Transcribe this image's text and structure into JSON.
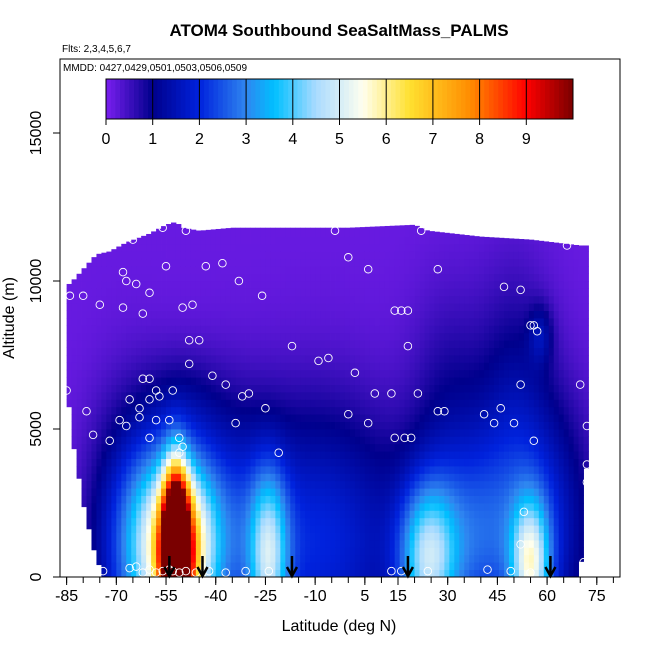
{
  "chart_data": {
    "type": "heatmap",
    "title": "ATOM4 Southbound SeaSaltMass_PALMS",
    "subtitle_flights": "Flts: 2,3,4,5,6,7",
    "subtitle_dates": "MMDD: 0427,0429,0501,0503,0506,0509",
    "xlabel": "Latitude (deg N)",
    "ylabel": "Altitude (m)",
    "xlim": [
      -87,
      82
    ],
    "ylim": [
      0,
      17500
    ],
    "x_ticks": [
      -85,
      -70,
      -55,
      -40,
      -25,
      -10,
      5,
      15,
      30,
      45,
      60,
      75
    ],
    "x_tick_labels": [
      "-85",
      "-70",
      "-55",
      "-40",
      "-25",
      "-10",
      "5",
      "15",
      "30",
      "45",
      "60",
      "75"
    ],
    "y_ticks": [
      0,
      5000,
      10000,
      15000
    ],
    "y_tick_labels": [
      "0",
      "5000",
      "10000",
      "15000"
    ],
    "colorbar": {
      "range": [
        0,
        10
      ],
      "tick_values": [
        0,
        1,
        2,
        3,
        4,
        5,
        6,
        7,
        8,
        9
      ],
      "tick_labels": [
        "0",
        "1",
        "2",
        "3",
        "4",
        "5",
        "6",
        "7",
        "8",
        "9"
      ],
      "colors": [
        "#7a1ff0",
        "#00008c",
        "#0022dd",
        "#2f86f0",
        "#00bfff",
        "#aadbff",
        "#ffffee",
        "#ffe030",
        "#ff8c00",
        "#ff0000",
        "#7a0000"
      ],
      "color_stops": [
        0,
        1,
        2,
        3,
        3.6,
        4.5,
        5.5,
        6.5,
        7.8,
        9,
        10
      ]
    },
    "field": {
      "background_value": 0.15,
      "top_boundary": {
        "x": [
          -84,
          -76,
          -72,
          -67,
          -60,
          -55,
          -52,
          -50,
          -45,
          -35,
          0,
          20,
          24,
          40,
          55,
          70
        ],
        "y": [
          9900,
          10900,
          11000,
          11300,
          11600,
          11900,
          12000,
          11800,
          11700,
          11800,
          11800,
          11900,
          11700,
          11500,
          11400,
          11200
        ]
      },
      "left_edge_lat": -85,
      "right_edge_lat": 72,
      "bottom_left_boundary": {
        "x": [
          -85,
          -83,
          -80,
          -77,
          -74
        ],
        "y": [
          6500,
          4500,
          2500,
          1000,
          0
        ]
      },
      "bottom_right_boundary": {
        "x": [
          70,
          72
        ],
        "y": [
          0,
          4200
        ]
      },
      "hotspots": [
        {
          "lat": -52,
          "alt": 400,
          "sx": 3,
          "sy": 1600,
          "value": 8.8
        },
        {
          "lat": -52,
          "alt": 1800,
          "sx": 2.5,
          "sy": 1500,
          "value": 5.0
        },
        {
          "lat": -56,
          "alt": 1000,
          "sx": 7,
          "sy": 2200,
          "value": 3.2
        },
        {
          "lat": -48,
          "alt": 900,
          "sx": 6,
          "sy": 2000,
          "value": 3.3
        },
        {
          "lat": -65,
          "alt": 1200,
          "sx": 9,
          "sy": 3000,
          "value": 2.0
        },
        {
          "lat": -40,
          "alt": 1500,
          "sx": 12,
          "sy": 2800,
          "value": 1.9
        },
        {
          "lat": -24,
          "alt": 700,
          "sx": 4,
          "sy": 2000,
          "value": 3.0
        },
        {
          "lat": -8,
          "alt": 1200,
          "sx": 18,
          "sy": 3200,
          "value": 1.8
        },
        {
          "lat": 24,
          "alt": 600,
          "sx": 6,
          "sy": 1800,
          "value": 3.3
        },
        {
          "lat": 38,
          "alt": 1300,
          "sx": 12,
          "sy": 2600,
          "value": 2.2
        },
        {
          "lat": 55,
          "alt": 400,
          "sx": 4,
          "sy": 1500,
          "value": 3.6
        },
        {
          "lat": 60,
          "alt": 1800,
          "sx": 10,
          "sy": 3000,
          "value": 1.4
        },
        {
          "lat": 58,
          "alt": 8200,
          "sx": 2.5,
          "sy": 700,
          "value": 0.9
        },
        {
          "lat": 50,
          "alt": 6200,
          "sx": 8,
          "sy": 3000,
          "value": 0.8
        },
        {
          "lat": 30,
          "alt": 6500,
          "sx": 8,
          "sy": 2500,
          "value": 0.5
        },
        {
          "lat": -50,
          "alt": 6000,
          "sx": 8,
          "sy": 1200,
          "value": 0.4
        }
      ]
    },
    "sample_points": [
      {
        "lat": -85,
        "alt": 6300
      },
      {
        "lat": -84,
        "alt": 9500
      },
      {
        "lat": -80,
        "alt": 9500
      },
      {
        "lat": -75,
        "alt": 9200
      },
      {
        "lat": -79,
        "alt": 5600
      },
      {
        "lat": -77,
        "alt": 4800
      },
      {
        "lat": -72,
        "alt": 4600
      },
      {
        "lat": -69,
        "alt": 5300
      },
      {
        "lat": -67,
        "alt": 5100
      },
      {
        "lat": -66,
        "alt": 6000
      },
      {
        "lat": -68,
        "alt": 10300
      },
      {
        "lat": -67,
        "alt": 10000
      },
      {
        "lat": -64,
        "alt": 9900
      },
      {
        "lat": -68,
        "alt": 9100
      },
      {
        "lat": -65,
        "alt": 11400
      },
      {
        "lat": -62,
        "alt": 8900
      },
      {
        "lat": -60,
        "alt": 9600
      },
      {
        "lat": -56,
        "alt": 11800
      },
      {
        "lat": -55,
        "alt": 10500
      },
      {
        "lat": -50,
        "alt": 9100
      },
      {
        "lat": -47,
        "alt": 9200
      },
      {
        "lat": -49,
        "alt": 11700
      },
      {
        "lat": -48,
        "alt": 8000
      },
      {
        "lat": -43,
        "alt": 10500
      },
      {
        "lat": -38,
        "alt": 10600
      },
      {
        "lat": -33,
        "alt": 10000
      },
      {
        "lat": -26,
        "alt": 9500
      },
      {
        "lat": -62,
        "alt": 6700
      },
      {
        "lat": -60,
        "alt": 6700
      },
      {
        "lat": -60,
        "alt": 6000
      },
      {
        "lat": -58,
        "alt": 6300
      },
      {
        "lat": -57,
        "alt": 6100
      },
      {
        "lat": -58,
        "alt": 5300
      },
      {
        "lat": -63,
        "alt": 5700
      },
      {
        "lat": -63,
        "alt": 5400
      },
      {
        "lat": -60,
        "alt": 4700
      },
      {
        "lat": -54,
        "alt": 5300
      },
      {
        "lat": -53,
        "alt": 6300
      },
      {
        "lat": -48,
        "alt": 7200
      },
      {
        "lat": -45,
        "alt": 8000
      },
      {
        "lat": -41,
        "alt": 6800
      },
      {
        "lat": -37,
        "alt": 6500
      },
      {
        "lat": -32,
        "alt": 6100
      },
      {
        "lat": -30,
        "alt": 6200
      },
      {
        "lat": -25,
        "alt": 5700
      },
      {
        "lat": -34,
        "alt": 5200
      },
      {
        "lat": -51,
        "alt": 4700
      },
      {
        "lat": -50,
        "alt": 4400
      },
      {
        "lat": -51,
        "alt": 4200
      },
      {
        "lat": -21,
        "alt": 4200
      },
      {
        "lat": -17,
        "alt": 7800
      },
      {
        "lat": -9,
        "alt": 7300
      },
      {
        "lat": -6,
        "alt": 7400
      },
      {
        "lat": -4,
        "alt": 11700
      },
      {
        "lat": 0,
        "alt": 10800
      },
      {
        "lat": 6,
        "alt": 10400
      },
      {
        "lat": 14,
        "alt": 9000
      },
      {
        "lat": 16,
        "alt": 9000
      },
      {
        "lat": 18,
        "alt": 9000
      },
      {
        "lat": 18,
        "alt": 7800
      },
      {
        "lat": 22,
        "alt": 11700
      },
      {
        "lat": 27,
        "alt": 10400
      },
      {
        "lat": 2,
        "alt": 6900
      },
      {
        "lat": 8,
        "alt": 6200
      },
      {
        "lat": 13,
        "alt": 6200
      },
      {
        "lat": 0,
        "alt": 5500
      },
      {
        "lat": 6,
        "alt": 5200
      },
      {
        "lat": 14,
        "alt": 4700
      },
      {
        "lat": 17,
        "alt": 4700
      },
      {
        "lat": 19,
        "alt": 4700
      },
      {
        "lat": 21,
        "alt": 6200
      },
      {
        "lat": 27,
        "alt": 5600
      },
      {
        "lat": 29,
        "alt": 5600
      },
      {
        "lat": 41,
        "alt": 5500
      },
      {
        "lat": 44,
        "alt": 5200
      },
      {
        "lat": 46,
        "alt": 5700
      },
      {
        "lat": 50,
        "alt": 5200
      },
      {
        "lat": 47,
        "alt": 9800
      },
      {
        "lat": 52,
        "alt": 9700
      },
      {
        "lat": 55,
        "alt": 8500
      },
      {
        "lat": 56,
        "alt": 8500
      },
      {
        "lat": 57,
        "alt": 8300
      },
      {
        "lat": 52,
        "alt": 6500
      },
      {
        "lat": 56,
        "alt": 4600
      },
      {
        "lat": 62,
        "alt": 11500
      },
      {
        "lat": 66,
        "alt": 11200
      },
      {
        "lat": 70,
        "alt": 6500
      },
      {
        "lat": 72,
        "alt": 5100
      },
      {
        "lat": 72,
        "alt": 3800
      },
      {
        "lat": 72,
        "alt": 3200
      },
      {
        "lat": 53,
        "alt": 2200
      },
      {
        "lat": 52,
        "alt": 1100
      },
      {
        "lat": 71,
        "alt": 500
      },
      {
        "lat": 72,
        "alt": 100
      },
      {
        "lat": -74,
        "alt": 200
      },
      {
        "lat": -66,
        "alt": 300
      },
      {
        "lat": -64,
        "alt": 350
      },
      {
        "lat": -62,
        "alt": 150
      },
      {
        "lat": -60,
        "alt": 250
      },
      {
        "lat": -58,
        "alt": 150
      },
      {
        "lat": -56,
        "alt": 200
      },
      {
        "lat": -54,
        "alt": 250
      },
      {
        "lat": -53,
        "alt": 200
      },
      {
        "lat": -51,
        "alt": 150
      },
      {
        "lat": -49,
        "alt": 200
      },
      {
        "lat": -46,
        "alt": 150
      },
      {
        "lat": -42,
        "alt": 200
      },
      {
        "lat": -37,
        "alt": 150
      },
      {
        "lat": -31,
        "alt": 200
      },
      {
        "lat": -24,
        "alt": 200
      },
      {
        "lat": 13,
        "alt": 200
      },
      {
        "lat": 16,
        "alt": 200
      },
      {
        "lat": 24,
        "alt": 200
      },
      {
        "lat": 42,
        "alt": 250
      },
      {
        "lat": 49,
        "alt": 200
      },
      {
        "lat": 55,
        "alt": 150
      }
    ],
    "arrows_lat": [
      -54,
      -44,
      -17,
      18,
      61
    ]
  }
}
